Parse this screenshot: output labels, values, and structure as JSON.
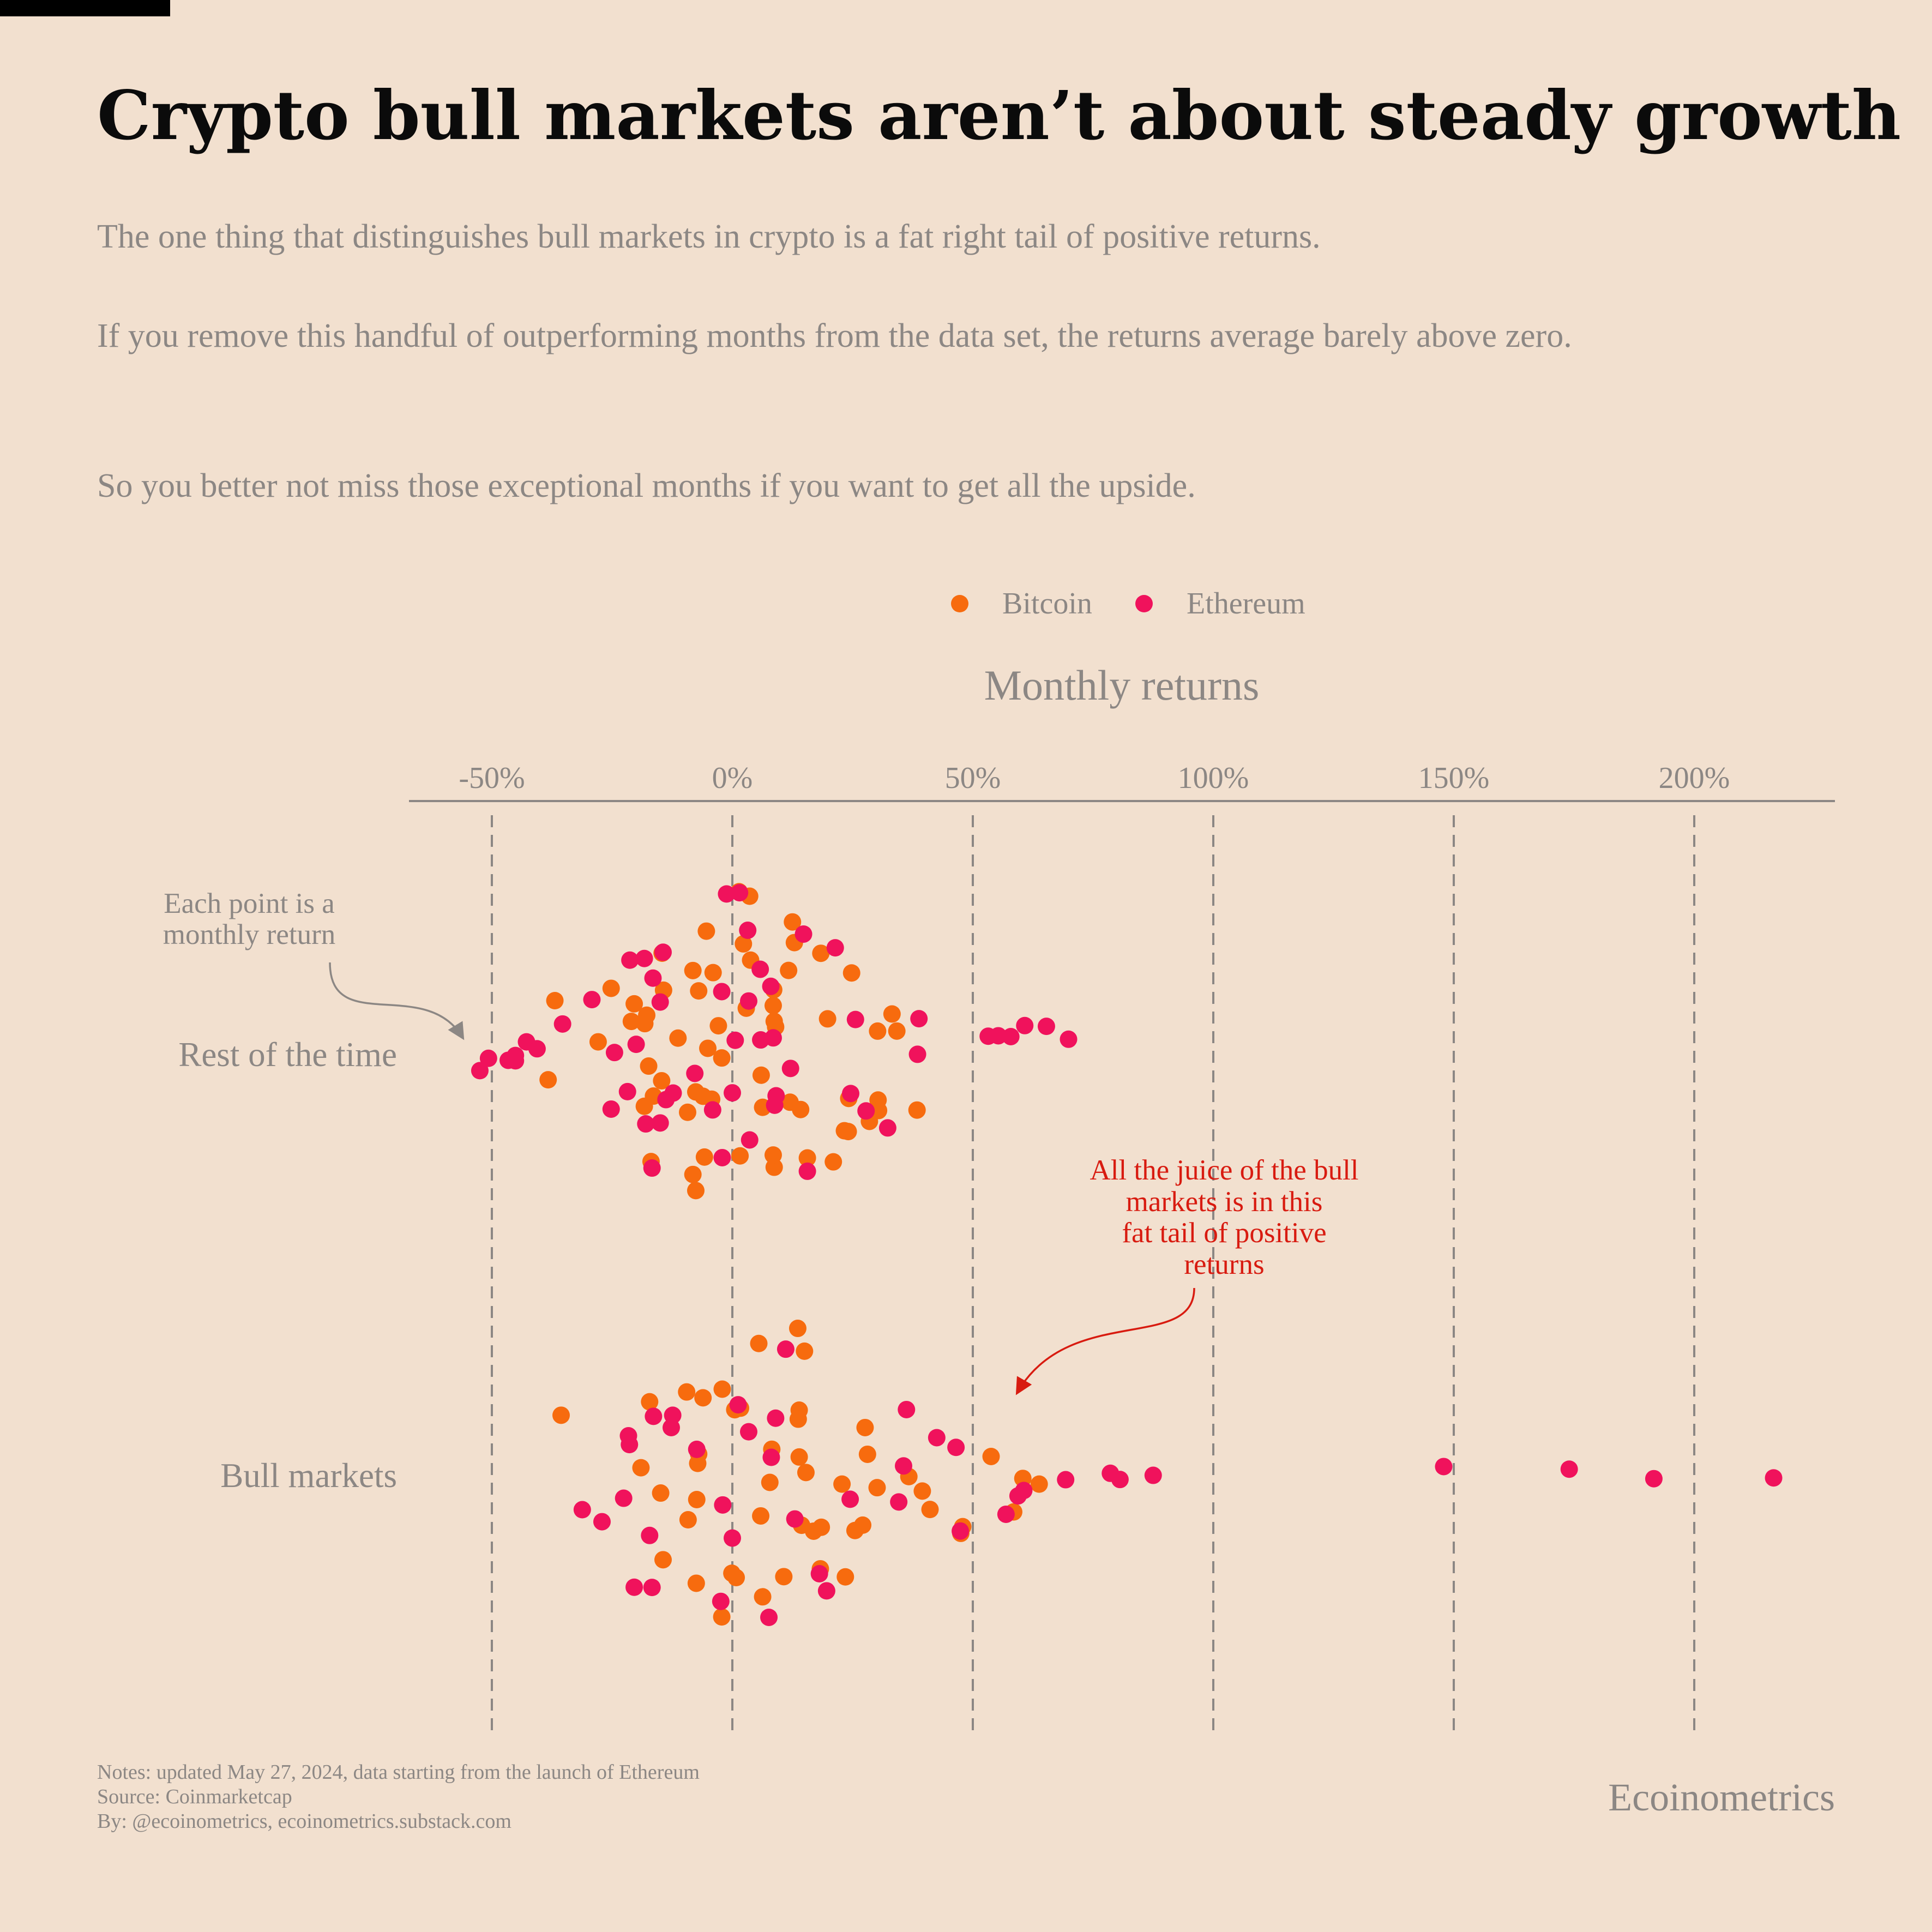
{
  "title": "Crypto bull markets aren’t about steady growth",
  "subtitle": [
    "The one thing that distinguishes bull markets in crypto is a fat right tail of positive returns.",
    "If you remove this handful of outperforming months from the data set, the returns average barely above zero.",
    "So you better not miss those exceptional months if you want to get all the upside."
  ],
  "annotations": {
    "each_point": [
      "Each point is a",
      "monthly return"
    ],
    "juice": [
      "All the juice of the bull",
      "markets is in this",
      "fat tail of positive",
      "returns"
    ]
  },
  "footer": {
    "notes": "Notes: updated May 27, 2024, data starting from the launch of Ethereum",
    "source": "Source: Coinmarketcap",
    "by": "By: @ecoinometrics, ecoinometrics.substack.com",
    "brand": "Ecoinometrics"
  },
  "chart_data": {
    "type": "scatter",
    "title": "Monthly returns",
    "x_axis": {
      "ticks": [
        -50,
        0,
        50,
        100,
        150,
        200
      ],
      "tick_labels": [
        "-50%",
        "0%",
        "50%",
        "100%",
        "150%",
        "200%"
      ],
      "range": [
        -67,
        229
      ],
      "grid": "dashed vertical lines at ticks",
      "position": "top"
    },
    "categories": [
      "Rest of the time",
      "Bull markets"
    ],
    "legend": {
      "placement": "top",
      "items": [
        "Bitcoin",
        "Ethereum"
      ]
    },
    "series": [
      {
        "name": "Bitcoin",
        "color": "#f76b0e",
        "points": [
          {
            "category": "Rest of the time",
            "values": [
              -7.6,
              -20.4,
              -14.7,
              -7.6,
              12,
              -4.3,
              2.3,
              8.7,
              14.2,
              24.1,
              30.3,
              33.2,
              -38.3,
              -25.2,
              -17.4,
              -8.2,
              24.8,
              30.4,
              -5.8,
              8.5,
              -36.9,
              -27.9,
              -9.3,
              -17.8,
              -14.3,
              8.5,
              21,
              38.4,
              34.2,
              30.2,
              28.5,
              18.4,
              12.9,
              8.6,
              2.9,
              -5.1,
              -16.9,
              -11.3,
              -18.3,
              3.8,
              9,
              15.6,
              23.3,
              -7,
              -2.2,
              1.6,
              -16.4,
              -5.4,
              6,
              12.5,
              6.3,
              19.8,
              24.2,
              -4,
              -21,
              -18.2,
              8.7,
              -8.2,
              -2.9,
              3.6,
              11.7,
              -14.6,
              -6.1,
              1.4
            ]
          },
          {
            "category": "Bull markets",
            "values": [
              0.5,
              13.9,
              -7,
              -2.1,
              18.3,
              15.3,
              30.1,
              -7.5,
              5.9,
              25.5,
              13.6,
              -14.9,
              -7.2,
              7.8,
              18.5,
              27.6,
              36.7,
              47.5,
              -9.5,
              22.8,
              47.9,
              63.8,
              -35.6,
              -9.2,
              14.4,
              28.1,
              -14.4,
              27.1,
              1.7,
              -0.1,
              58.5,
              60.4,
              -17.2,
              -7.4,
              16.9,
              23.5,
              39.5,
              41.1,
              5.5,
              -2.2,
              15,
              53.8,
              -19,
              10.7,
              13.7,
              6.3,
              -6.1,
              0.8,
              8.2,
              13.9
            ]
          }
        ]
      },
      {
        "name": "Ethereum",
        "color": "#f0125c",
        "points": [
          {
            "category": "Rest of the time",
            "values": [
              1.5,
              -15,
              -4.1,
              -18,
              3.6,
              -16.7,
              -7.8,
              -2.1,
              8,
              -1.2,
              5.8,
              -24.5,
              0,
              8.8,
              -12.3,
              -20,
              9.1,
              15.6,
              24.6,
              3.2,
              12.1,
              -29.2,
              -45.1,
              -42.8,
              -35.3,
              -46.6,
              55.3,
              53.2,
              69.9,
              38.8,
              60.8,
              38.5,
              -52.5,
              -50.7,
              -40.6,
              -25.2,
              -15,
              -2.2,
              5.9,
              0.6,
              21.4,
              32.3,
              57.9,
              65.3,
              -45.1,
              25.6,
              -21.3,
              -14.4,
              -18.3,
              14.8,
              27.8,
              -21.8,
              -13.8,
              3.4,
              -16.5,
              8.5
            ]
          },
          {
            "category": "Bull markets",
            "values": [
              7.6,
              -12.7,
              11.1,
              -2.4,
              3.4,
              56.9,
              42.5,
              46.5,
              -2,
              -20.4,
              -16.4,
              -27.1,
              -21.6,
              18.1,
              78.6,
              80.6,
              -17.2,
              69.3,
              -31.2,
              0,
              1.2,
              36.2,
              59.4,
              147.9,
              174,
              191.6,
              216.5,
              87.5,
              60.6,
              13,
              24.5,
              -21.4,
              8.1,
              35.6,
              -22.6,
              9,
              47.4,
              -16.7,
              34.6,
              -7.4,
              19.6,
              -12.4
            ]
          }
        ]
      }
    ]
  }
}
